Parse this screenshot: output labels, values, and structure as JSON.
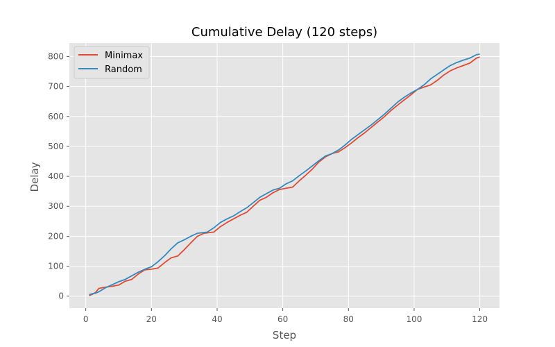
{
  "chart_data": {
    "type": "line",
    "title": "Cumulative Delay (120 steps)",
    "xlabel": "Step",
    "ylabel": "Delay",
    "xlim": [
      -5,
      126
    ],
    "ylim": [
      -40,
      845
    ],
    "xticks": [
      0,
      20,
      40,
      60,
      80,
      100,
      120
    ],
    "yticks": [
      0,
      100,
      200,
      300,
      400,
      500,
      600,
      700,
      800
    ],
    "grid": true,
    "legend_position": "upper-left",
    "background": "#e5e5e5",
    "series": [
      {
        "name": "Minimax",
        "color": "#e24a33",
        "points": [
          [
            1,
            2
          ],
          [
            2,
            6
          ],
          [
            3,
            13
          ],
          [
            4,
            26
          ],
          [
            6,
            30
          ],
          [
            8,
            33
          ],
          [
            10,
            37
          ],
          [
            12,
            50
          ],
          [
            14,
            56
          ],
          [
            16,
            74
          ],
          [
            18,
            88
          ],
          [
            20,
            90
          ],
          [
            22,
            94
          ],
          [
            24,
            112
          ],
          [
            26,
            128
          ],
          [
            28,
            134
          ],
          [
            30,
            155
          ],
          [
            32,
            178
          ],
          [
            34,
            200
          ],
          [
            36,
            210
          ],
          [
            39,
            214
          ],
          [
            41,
            232
          ],
          [
            43,
            246
          ],
          [
            45,
            258
          ],
          [
            47,
            270
          ],
          [
            49,
            280
          ],
          [
            51,
            300
          ],
          [
            53,
            320
          ],
          [
            55,
            330
          ],
          [
            57,
            345
          ],
          [
            59,
            356
          ],
          [
            61,
            360
          ],
          [
            63,
            364
          ],
          [
            65,
            385
          ],
          [
            67,
            404
          ],
          [
            69,
            424
          ],
          [
            71,
            448
          ],
          [
            73,
            465
          ],
          [
            75,
            476
          ],
          [
            77,
            482
          ],
          [
            79,
            496
          ],
          [
            81,
            512
          ],
          [
            83,
            530
          ],
          [
            85,
            546
          ],
          [
            87,
            564
          ],
          [
            89,
            582
          ],
          [
            91,
            600
          ],
          [
            93,
            620
          ],
          [
            95,
            638
          ],
          [
            97,
            655
          ],
          [
            99,
            672
          ],
          [
            101,
            690
          ],
          [
            103,
            698
          ],
          [
            105,
            705
          ],
          [
            107,
            720
          ],
          [
            109,
            738
          ],
          [
            111,
            752
          ],
          [
            113,
            762
          ],
          [
            115,
            770
          ],
          [
            117,
            778
          ],
          [
            119,
            795
          ],
          [
            120,
            798
          ]
        ]
      },
      {
        "name": "Random",
        "color": "#348abd",
        "points": [
          [
            1,
            5
          ],
          [
            2,
            8
          ],
          [
            3,
            10
          ],
          [
            4,
            15
          ],
          [
            6,
            28
          ],
          [
            8,
            38
          ],
          [
            10,
            48
          ],
          [
            12,
            56
          ],
          [
            14,
            68
          ],
          [
            16,
            80
          ],
          [
            18,
            90
          ],
          [
            20,
            98
          ],
          [
            22,
            115
          ],
          [
            24,
            135
          ],
          [
            26,
            158
          ],
          [
            28,
            178
          ],
          [
            30,
            188
          ],
          [
            32,
            200
          ],
          [
            34,
            210
          ],
          [
            37,
            214
          ],
          [
            39,
            228
          ],
          [
            41,
            246
          ],
          [
            43,
            258
          ],
          [
            45,
            268
          ],
          [
            47,
            282
          ],
          [
            49,
            295
          ],
          [
            51,
            312
          ],
          [
            53,
            330
          ],
          [
            55,
            342
          ],
          [
            57,
            354
          ],
          [
            59,
            360
          ],
          [
            61,
            375
          ],
          [
            63,
            385
          ],
          [
            65,
            402
          ],
          [
            67,
            418
          ],
          [
            69,
            435
          ],
          [
            71,
            452
          ],
          [
            73,
            468
          ],
          [
            75,
            476
          ],
          [
            77,
            488
          ],
          [
            79,
            505
          ],
          [
            81,
            524
          ],
          [
            83,
            540
          ],
          [
            85,
            556
          ],
          [
            87,
            572
          ],
          [
            89,
            590
          ],
          [
            91,
            608
          ],
          [
            93,
            628
          ],
          [
            95,
            648
          ],
          [
            97,
            664
          ],
          [
            99,
            678
          ],
          [
            101,
            690
          ],
          [
            103,
            705
          ],
          [
            105,
            725
          ],
          [
            107,
            740
          ],
          [
            109,
            755
          ],
          [
            111,
            770
          ],
          [
            113,
            780
          ],
          [
            115,
            788
          ],
          [
            117,
            795
          ],
          [
            119,
            806
          ],
          [
            120,
            808
          ]
        ]
      }
    ]
  }
}
